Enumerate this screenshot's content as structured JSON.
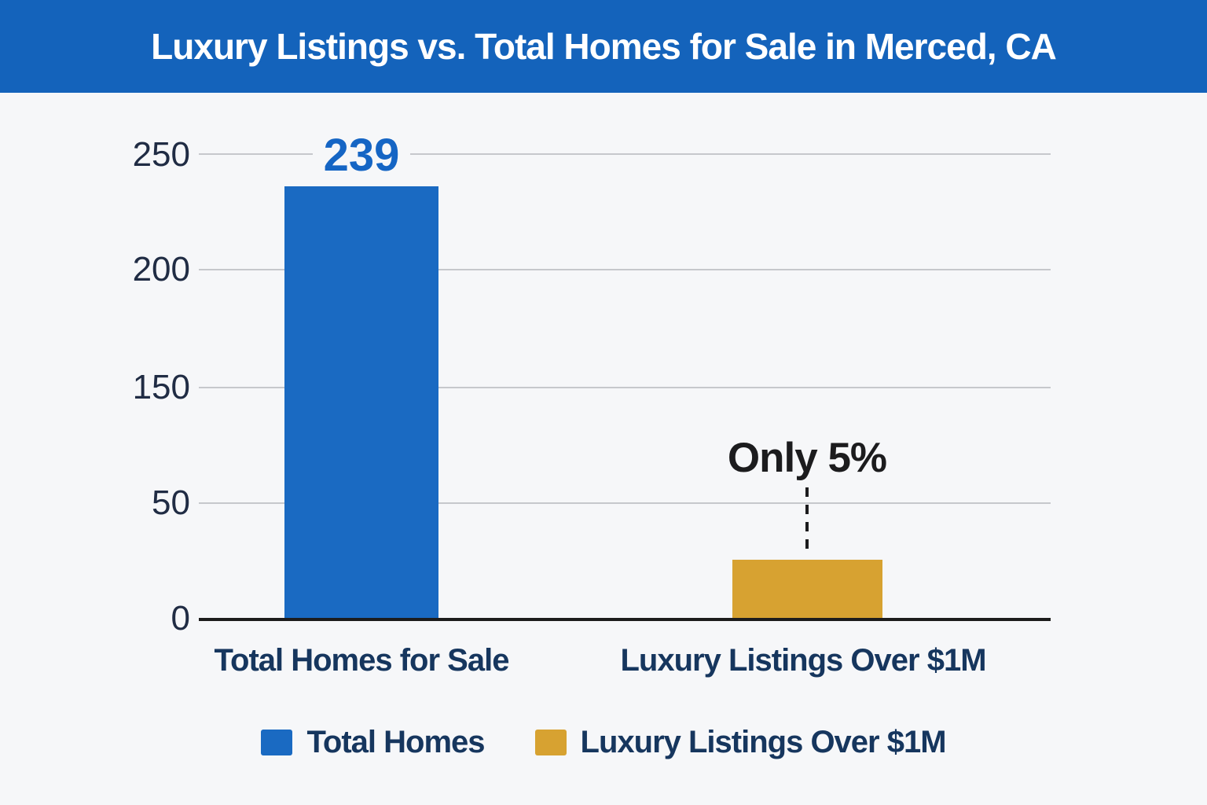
{
  "header": {
    "title": "Luxury Listings vs. Total Homes for Sale in Merced, CA"
  },
  "colors": {
    "banner": "#1463bb",
    "bar_blue": "#1a6ac2",
    "bar_gold": "#d7a231",
    "navy": "#16365e",
    "tick": "#202c44",
    "black": "#1c1c1e",
    "grid": "#c6c8cc",
    "axis": "#1c1c1c",
    "bg": "#f6f7f9",
    "value_blue": "#1565c4",
    "title_text": "#ffffff"
  },
  "chart_data": {
    "type": "bar",
    "title": "Luxury Listings vs. Total Homes for Sale in Merced, CA",
    "categories": [
      "Total Homes for Sale",
      "Luxury Listings Over $1M"
    ],
    "values": [
      239,
      12
    ],
    "value_labels": [
      "239",
      ""
    ],
    "annotation": "Only 5%",
    "annotation_target": "Luxury Listings Over $1M",
    "y_ticks": [
      "250",
      "200",
      "150",
      "50",
      "0"
    ],
    "ylim": [
      0,
      250
    ],
    "grid": true,
    "xlabel": "",
    "ylabel": "",
    "legend_position": "bottom",
    "series_colors": [
      "#1a6ac2",
      "#d7a231"
    ]
  },
  "legend": {
    "items": [
      {
        "label": "Total Homes",
        "color": "#1a6ac2"
      },
      {
        "label": "Luxury Listings Over $1M",
        "color": "#d7a231"
      }
    ]
  }
}
